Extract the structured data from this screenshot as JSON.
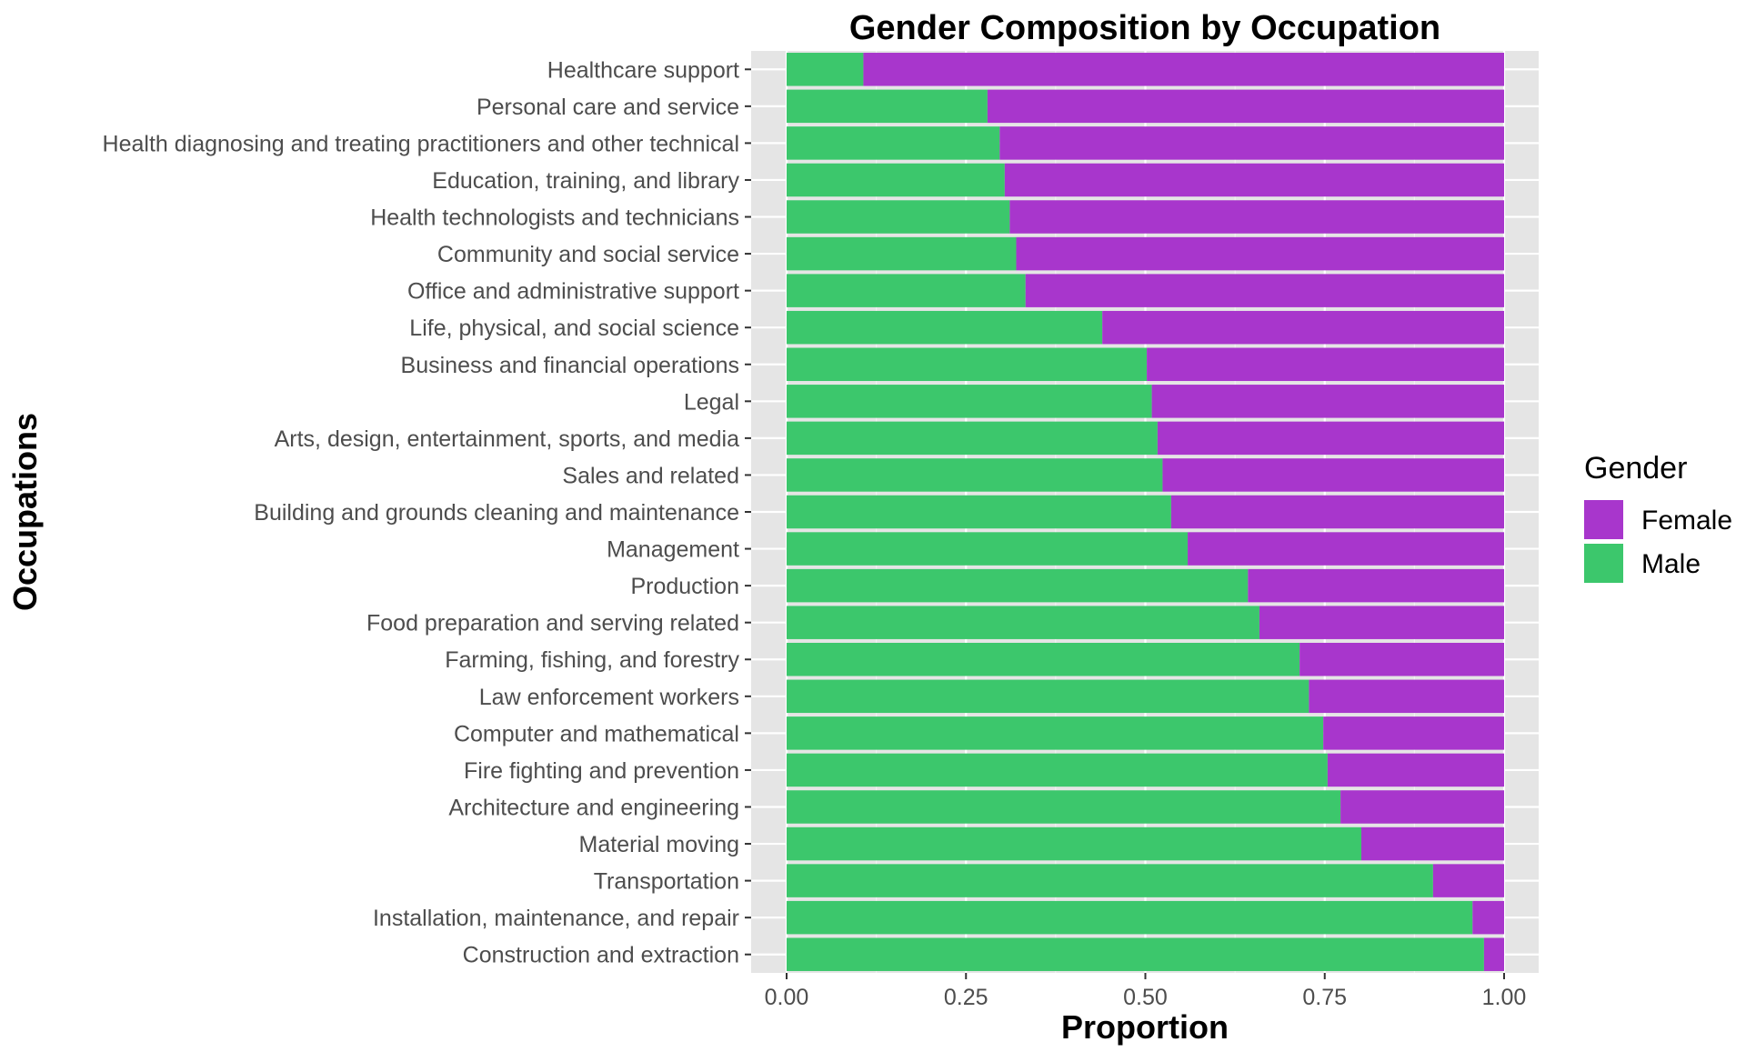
{
  "chart_data": {
    "type": "bar",
    "orientation": "horizontal",
    "stacked": "proportion",
    "title": "Gender Composition by Occupation",
    "xlabel": "Proportion",
    "ylabel": "Occupations",
    "xlim": [
      0,
      1
    ],
    "xticks": [
      "0.00",
      "0.25",
      "0.50",
      "0.75",
      "1.00"
    ],
    "grid": true,
    "legend_position": "right",
    "legend_title": "Gender",
    "categories": [
      "Healthcare support",
      "Personal care and service",
      "Health diagnosing and treating practitioners and other technical",
      "Education, training, and library",
      "Health technologists and technicians",
      "Community and social service",
      "Office and administrative support",
      "Life, physical, and social science",
      "Business and financial operations",
      "Legal",
      "Arts, design, entertainment, sports, and media",
      "Sales and related",
      "Building and grounds cleaning and maintenance",
      "Management",
      "Production",
      "Food preparation and serving related",
      "Farming, fishing, and forestry",
      "Law enforcement workers",
      "Computer and mathematical",
      "Fire fighting and prevention",
      "Architecture and engineering",
      "Material moving",
      "Transportation",
      "Installation, maintenance, and repair",
      "Construction and extraction"
    ],
    "series": [
      {
        "name": "Female",
        "color": "#a836cc",
        "values": [
          0.893,
          0.72,
          0.703,
          0.696,
          0.689,
          0.68,
          0.667,
          0.56,
          0.498,
          0.491,
          0.483,
          0.476,
          0.464,
          0.441,
          0.357,
          0.341,
          0.285,
          0.272,
          0.252,
          0.246,
          0.228,
          0.199,
          0.099,
          0.044,
          0.028
        ]
      },
      {
        "name": "Male",
        "color": "#3cc76c",
        "values": [
          0.107,
          0.28,
          0.297,
          0.304,
          0.311,
          0.32,
          0.333,
          0.44,
          0.502,
          0.509,
          0.517,
          0.524,
          0.536,
          0.559,
          0.643,
          0.659,
          0.715,
          0.728,
          0.748,
          0.754,
          0.772,
          0.801,
          0.901,
          0.956,
          0.972
        ]
      }
    ],
    "legend_order": [
      "Female",
      "Male"
    ]
  }
}
